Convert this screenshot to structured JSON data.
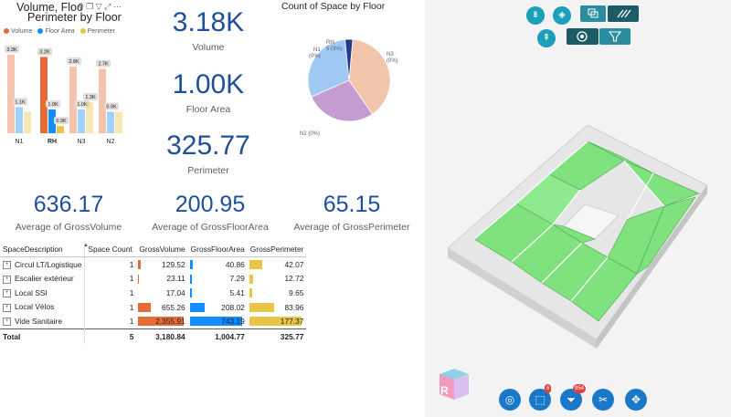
{
  "bar_chart_title_line1": "Volume, Floo",
  "bar_chart_title_line2": "Perimeter by Floor",
  "legend": [
    {
      "label": "Volume",
      "color": "#e66c37"
    },
    {
      "label": "Floor Area",
      "color": "#118dff"
    },
    {
      "label": "Perimeter",
      "color": "#e8c546"
    }
  ],
  "chart_data": [
    {
      "type": "bar",
      "title": "Volume, Floor Area and Perimeter by Floor",
      "categories": [
        "N1",
        "RH",
        "N3",
        "N2"
      ],
      "series": [
        {
          "name": "Volume",
          "values": [
            3300,
            3200,
            2800,
            2700
          ],
          "color": "#e66c37",
          "labels": [
            "3.3K",
            "3.2K",
            "2.8K",
            "2.7K"
          ]
        },
        {
          "name": "Floor Area",
          "values": [
            1100,
            1000,
            1000,
            900
          ],
          "color": "#118dff",
          "labels": [
            "1.1K",
            "1.0K",
            "1.0K",
            "0.9K"
          ]
        },
        {
          "name": "Perimeter",
          "values": [
            900,
            300,
            1300,
            900
          ],
          "color": "#e8c546",
          "labels": [
            "",
            "0.3K",
            "1.3K",
            ""
          ]
        }
      ],
      "selected": "RH",
      "ylim": [
        0,
        3600
      ]
    },
    {
      "type": "pie",
      "title": "Count of Space by Floor",
      "slices": [
        {
          "label": "N3",
          "value": 39,
          "display": "N3\n(0%)",
          "color": "#f2c4aa"
        },
        {
          "label": "N2",
          "value": 28,
          "display": "N2 (0%)",
          "color": "#c49cd1"
        },
        {
          "label": "N1",
          "value": 30,
          "display": "N1\n(0%)",
          "color": "#9fc9f4"
        },
        {
          "label": "RH",
          "value": 3,
          "display": "RH\n5 (3%)",
          "color": "#1f3c88"
        }
      ]
    }
  ],
  "kpis": [
    {
      "value": "3.18K",
      "label": "Volume"
    },
    {
      "value": "1.00K",
      "label": "Floor Area"
    },
    {
      "value": "325.77",
      "label": "Perimeter"
    }
  ],
  "pie_title": "Count of Space by Floor",
  "pie_labels": {
    "n3": "N3",
    "n3_pct": "(0%)",
    "n2": "N2 (0%)",
    "n1": "N1",
    "n1_pct": "(0%)",
    "rh": "RH",
    "rh_pct": "5 (3%)"
  },
  "averages": [
    {
      "value": "636.17",
      "label": "Average of GrossVolume"
    },
    {
      "value": "200.95",
      "label": "Average of GrossFloorArea"
    },
    {
      "value": "65.15",
      "label": "Average of GrossPerimeter"
    }
  ],
  "table": {
    "headers": [
      "SpaceDescription",
      "Space Count",
      "GrossVolume",
      "GrossFloorArea",
      "GrossPerimeter"
    ],
    "rows": [
      {
        "name": "Circul LT/Logistique",
        "count": "1",
        "vol": "129.52",
        "area": "40.86",
        "per": "42.07",
        "volFrac": 0.055,
        "areaFrac": 0.055,
        "perFrac": 0.24
      },
      {
        "name": "Escalier extérieur",
        "count": "1",
        "vol": "23.11",
        "area": "7.29",
        "per": "12.72",
        "volFrac": 0.01,
        "areaFrac": 0.01,
        "perFrac": 0.07
      },
      {
        "name": "Local SSI",
        "count": "1",
        "vol": "17.04",
        "area": "5.41",
        "per": "9.65",
        "volFrac": 0.007,
        "areaFrac": 0.007,
        "perFrac": 0.05
      },
      {
        "name": "Local Vélos",
        "count": "1",
        "vol": "655.26",
        "area": "208.02",
        "per": "83.96",
        "volFrac": 0.28,
        "areaFrac": 0.28,
        "perFrac": 0.47
      },
      {
        "name": "Vide Sanitaire",
        "count": "1",
        "vol": "2,355.91",
        "area": "743.19",
        "per": "177.37",
        "volFrac": 1.0,
        "areaFrac": 1.0,
        "perFrac": 1.0
      }
    ],
    "total": {
      "name": "Total",
      "count": "5",
      "vol": "3,180.84",
      "area": "1,004.77",
      "per": "325.77"
    }
  },
  "viewer": {
    "badge_select": "6",
    "badge_filter": "954",
    "cube_face_label": "R"
  },
  "colors": {
    "volume": "#e66c37",
    "area": "#118dff",
    "perimeter": "#e8c546",
    "kpi": "#1f4e9b",
    "accent": "#1aa0b8",
    "model_green": "#7fe27f"
  }
}
